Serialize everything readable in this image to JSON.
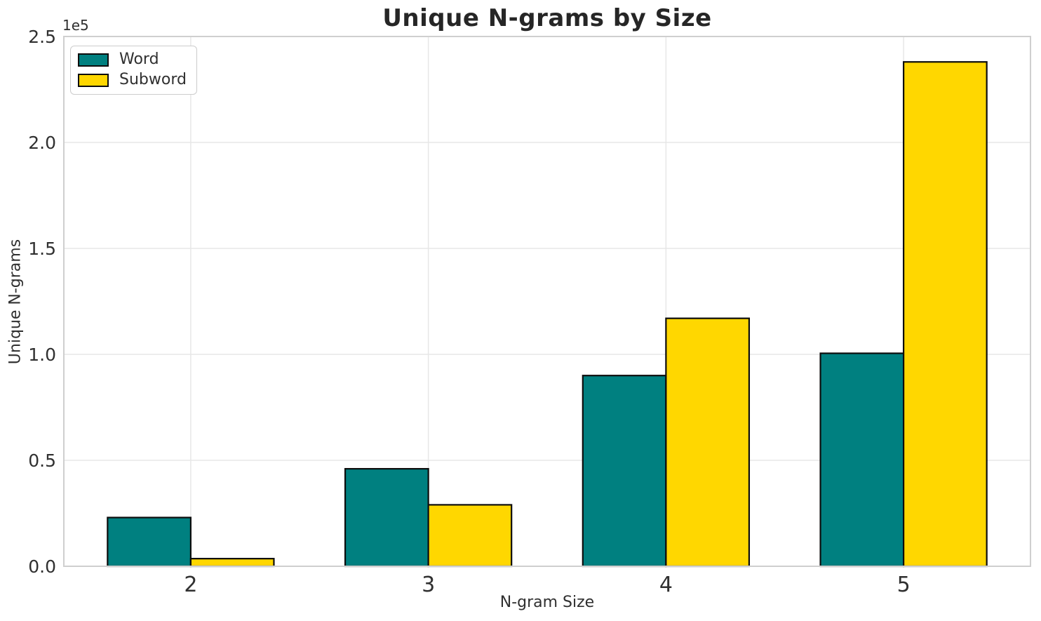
{
  "title": "Unique N-grams by Size",
  "chart_data": {
    "type": "bar",
    "title": "Unique N-grams by Size",
    "xlabel": "N-gram Size",
    "ylabel": "Unique N-grams",
    "categories": [
      "2",
      "3",
      "4",
      "5"
    ],
    "series": [
      {
        "name": "Word",
        "color": "#008080",
        "values": [
          23000,
          46000,
          90000,
          100500
        ]
      },
      {
        "name": "Subword",
        "color": "#FFD700",
        "values": [
          3600,
          29000,
          117000,
          238000
        ]
      }
    ],
    "ylim": [
      0,
      250000
    ],
    "yticks": [
      0,
      50000,
      100000,
      150000,
      200000,
      250000
    ],
    "ytick_labels": [
      "0.0",
      "0.5",
      "1.0",
      "1.5",
      "2.0",
      "2.5"
    ],
    "offset_text": "1e5",
    "xtick_labels": [
      "2",
      "3",
      "4",
      "5"
    ],
    "grid": true,
    "legend_position": "upper left",
    "bar_edge_color": "#0d0d0d",
    "grid_color": "#e7e7e7",
    "spine_color": "#cfcfcf",
    "bar_width_fraction": 0.35
  }
}
